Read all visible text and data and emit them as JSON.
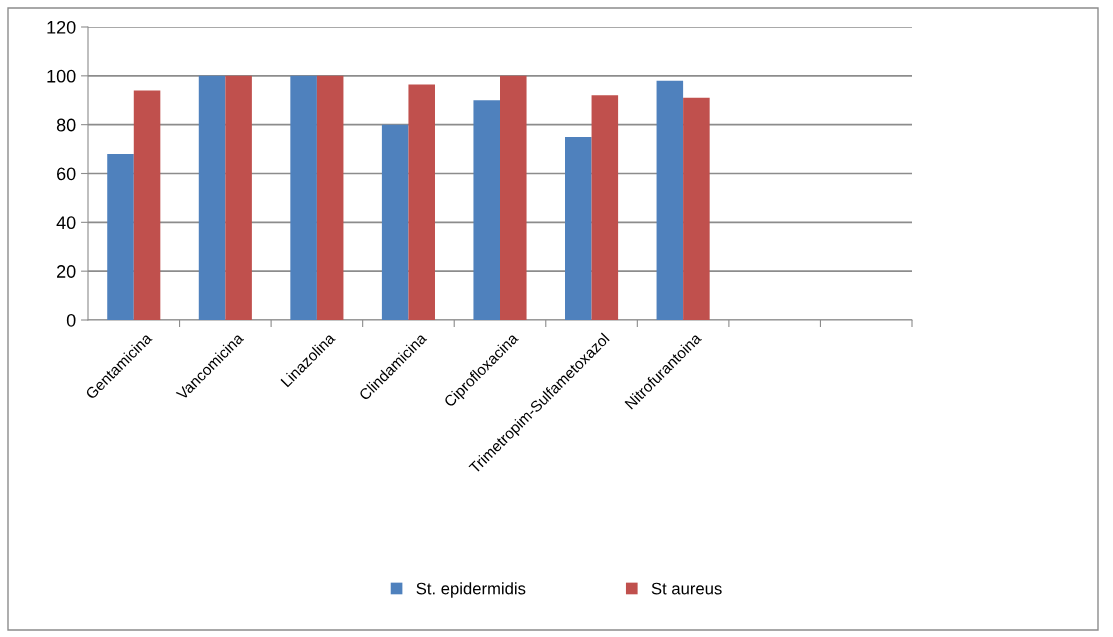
{
  "chart_data": {
    "type": "bar",
    "categories": [
      "Gentamicina",
      "Vancomicina",
      "Linazolina",
      "Clindamicina",
      "Ciprofloxacina",
      "Trimetropim-Sulfametoxazol",
      "Nitrofurantoina",
      null,
      null
    ],
    "series": [
      {
        "name": "St. epidermidis",
        "color": "#4f81bd",
        "values": [
          68,
          100,
          100,
          80,
          90,
          75,
          98,
          null,
          null
        ]
      },
      {
        "name": "St aureus",
        "color": "#c0504d",
        "values": [
          94,
          100,
          100,
          96.5,
          100,
          92,
          91,
          null,
          null
        ]
      }
    ],
    "ylim": [
      0,
      120
    ],
    "yticks": [
      0,
      20,
      40,
      60,
      80,
      100,
      120
    ],
    "grid": "y",
    "legend": "bottom"
  }
}
